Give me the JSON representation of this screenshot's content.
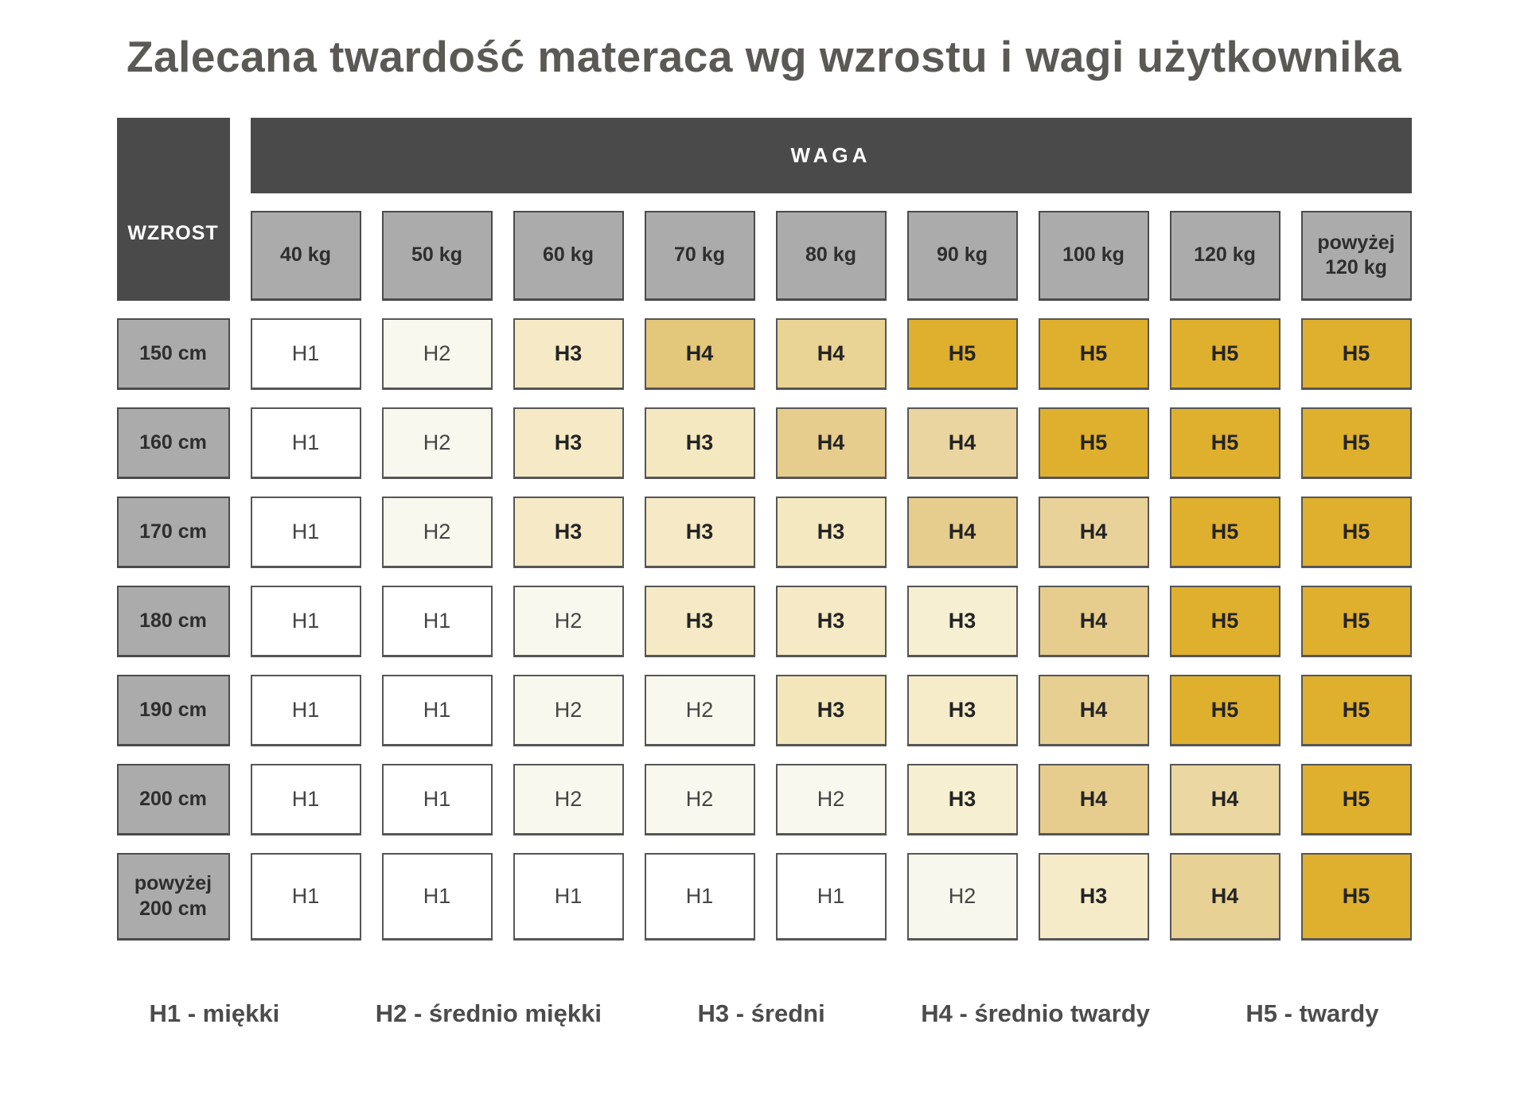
{
  "title": "Zalecana twardość materaca wg wzrostu i wagi użytkownika",
  "table": {
    "col_group_label": "WAGA",
    "row_group_label": "WZROST",
    "columns": [
      "40 kg",
      "50 kg",
      "60 kg",
      "70 kg",
      "80 kg",
      "90 kg",
      "100 kg",
      "120 kg",
      "powyżej 120 kg"
    ],
    "rows": [
      {
        "label": "150 cm",
        "cells": [
          {
            "v": "H1",
            "c": "#ffffff"
          },
          {
            "v": "H2",
            "c": "#f9f8ee"
          },
          {
            "v": "H3",
            "c": "#f5eac5"
          },
          {
            "v": "H4",
            "c": "#e3c77b"
          },
          {
            "v": "H4",
            "c": "#e9d495"
          },
          {
            "v": "H5",
            "c": "#dfaf2e"
          },
          {
            "v": "H5",
            "c": "#dfaf2e"
          },
          {
            "v": "H5",
            "c": "#dfaf2e"
          },
          {
            "v": "H5",
            "c": "#dfaf2e"
          }
        ]
      },
      {
        "label": "160 cm",
        "cells": [
          {
            "v": "H1",
            "c": "#ffffff"
          },
          {
            "v": "H2",
            "c": "#f9f8ee"
          },
          {
            "v": "H3",
            "c": "#f5eac5"
          },
          {
            "v": "H3",
            "c": "#f4e8c0"
          },
          {
            "v": "H4",
            "c": "#e6cd8d"
          },
          {
            "v": "H4",
            "c": "#ead5a0"
          },
          {
            "v": "H5",
            "c": "#dfaf2e"
          },
          {
            "v": "H5",
            "c": "#dfaf2e"
          },
          {
            "v": "H5",
            "c": "#dfaf2e"
          }
        ]
      },
      {
        "label": "170 cm",
        "cells": [
          {
            "v": "H1",
            "c": "#ffffff"
          },
          {
            "v": "H2",
            "c": "#f9f8ee"
          },
          {
            "v": "H3",
            "c": "#f5eac5"
          },
          {
            "v": "H3",
            "c": "#f5eac5"
          },
          {
            "v": "H3",
            "c": "#f4e8c0"
          },
          {
            "v": "H4",
            "c": "#e6cd8d"
          },
          {
            "v": "H4",
            "c": "#e9d299"
          },
          {
            "v": "H5",
            "c": "#dfaf2e"
          },
          {
            "v": "H5",
            "c": "#dfaf2e"
          }
        ]
      },
      {
        "label": "180 cm",
        "cells": [
          {
            "v": "H1",
            "c": "#ffffff"
          },
          {
            "v": "H1",
            "c": "#ffffff"
          },
          {
            "v": "H2",
            "c": "#f9f8ee"
          },
          {
            "v": "H3",
            "c": "#f5eac5"
          },
          {
            "v": "H3",
            "c": "#f5eac5"
          },
          {
            "v": "H3",
            "c": "#f7efd2"
          },
          {
            "v": "H4",
            "c": "#e6cd8d"
          },
          {
            "v": "H5",
            "c": "#dfaf2e"
          },
          {
            "v": "H5",
            "c": "#dfaf2e"
          }
        ]
      },
      {
        "label": "190 cm",
        "cells": [
          {
            "v": "H1",
            "c": "#ffffff"
          },
          {
            "v": "H1",
            "c": "#ffffff"
          },
          {
            "v": "H2",
            "c": "#f9f8ee"
          },
          {
            "v": "H2",
            "c": "#f9f8ee"
          },
          {
            "v": "H3",
            "c": "#f3e6bb"
          },
          {
            "v": "H3",
            "c": "#f6ecc9"
          },
          {
            "v": "H4",
            "c": "#e7cf92"
          },
          {
            "v": "H5",
            "c": "#dfaf2e"
          },
          {
            "v": "H5",
            "c": "#dfaf2e"
          }
        ]
      },
      {
        "label": "200 cm",
        "cells": [
          {
            "v": "H1",
            "c": "#ffffff"
          },
          {
            "v": "H1",
            "c": "#ffffff"
          },
          {
            "v": "H2",
            "c": "#f9f8ee"
          },
          {
            "v": "H2",
            "c": "#f9f8ee"
          },
          {
            "v": "H2",
            "c": "#f9f8ee"
          },
          {
            "v": "H3",
            "c": "#f7efd2"
          },
          {
            "v": "H4",
            "c": "#e6cd8d"
          },
          {
            "v": "H4",
            "c": "#ead7a1"
          },
          {
            "v": "H5",
            "c": "#dfaf2e"
          }
        ]
      },
      {
        "label": "powyżej 200 cm",
        "cells": [
          {
            "v": "H1",
            "c": "#ffffff"
          },
          {
            "v": "H1",
            "c": "#ffffff"
          },
          {
            "v": "H1",
            "c": "#ffffff"
          },
          {
            "v": "H1",
            "c": "#ffffff"
          },
          {
            "v": "H1",
            "c": "#ffffff"
          },
          {
            "v": "H2",
            "c": "#f8f7ed"
          },
          {
            "v": "H3",
            "c": "#f6ebc8"
          },
          {
            "v": "H4",
            "c": "#e8d194"
          },
          {
            "v": "H5",
            "c": "#dfaf2e"
          }
        ]
      }
    ]
  },
  "legend": [
    {
      "label": "H1 - miękki"
    },
    {
      "label": "H2 - średnio miękki"
    },
    {
      "label": "H3 - średni"
    },
    {
      "label": "H4 - średnio twardy"
    },
    {
      "label": "H5 - twardy"
    }
  ],
  "colors": {
    "header_bg": "#4a4a4a",
    "header_text": "#ffffff",
    "axis_label_bg": "#ababab",
    "cell_border": "#565656",
    "title_text": "#5b5955",
    "h1": "#ffffff",
    "h2": "#f9f8ee",
    "h3": "#f5eac5",
    "h4": "#e5ca82",
    "h5": "#dfaf2e"
  },
  "chart_data": {
    "type": "heatmap",
    "title": "Zalecana twardość materaca wg wzrostu i wagi użytkownika",
    "xlabel": "WAGA",
    "ylabel": "WZROST",
    "x_categories": [
      "40 kg",
      "50 kg",
      "60 kg",
      "70 kg",
      "80 kg",
      "90 kg",
      "100 kg",
      "120 kg",
      "powyżej 120 kg"
    ],
    "y_categories": [
      "150 cm",
      "160 cm",
      "170 cm",
      "180 cm",
      "190 cm",
      "200 cm",
      "powyżej 200 cm"
    ],
    "values": [
      [
        "H1",
        "H2",
        "H3",
        "H4",
        "H4",
        "H5",
        "H5",
        "H5",
        "H5"
      ],
      [
        "H1",
        "H2",
        "H3",
        "H3",
        "H4",
        "H4",
        "H5",
        "H5",
        "H5"
      ],
      [
        "H1",
        "H2",
        "H3",
        "H3",
        "H3",
        "H4",
        "H4",
        "H5",
        "H5"
      ],
      [
        "H1",
        "H1",
        "H2",
        "H3",
        "H3",
        "H3",
        "H4",
        "H5",
        "H5"
      ],
      [
        "H1",
        "H1",
        "H2",
        "H2",
        "H3",
        "H3",
        "H4",
        "H5",
        "H5"
      ],
      [
        "H1",
        "H1",
        "H2",
        "H2",
        "H2",
        "H3",
        "H4",
        "H4",
        "H5"
      ],
      [
        "H1",
        "H1",
        "H1",
        "H1",
        "H1",
        "H2",
        "H3",
        "H4",
        "H5"
      ]
    ],
    "legend_entries": [
      "H1 - miękki",
      "H2 - średnio miękki",
      "H3 - średni",
      "H4 - średnio twardy",
      "H5 - twardy"
    ],
    "legend_position": "bottom",
    "grid": false,
    "color_scale": {
      "H1": "#ffffff",
      "H2": "#f9f8ee",
      "H3": "#f5eac5",
      "H4": "#e5ca82",
      "H5": "#dfaf2e"
    }
  }
}
